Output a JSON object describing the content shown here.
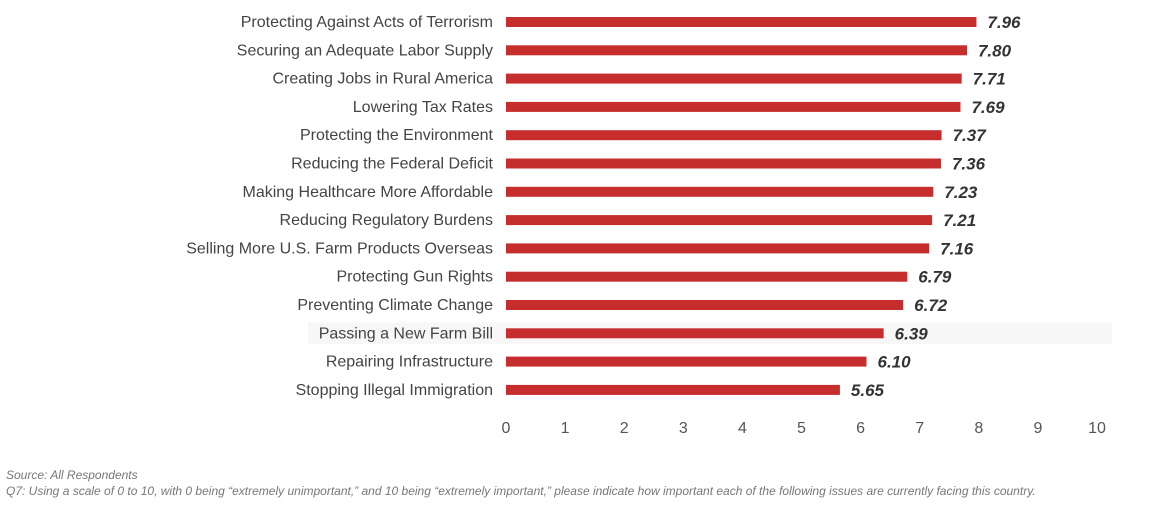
{
  "chart_data": {
    "type": "bar",
    "orientation": "horizontal",
    "categories": [
      "Protecting Against Acts of Terrorism",
      "Securing an Adequate Labor Supply",
      "Creating Jobs in Rural America",
      "Lowering Tax Rates",
      "Protecting the Environment",
      "Reducing the Federal Deficit",
      "Making Healthcare More Affordable",
      "Reducing Regulatory Burdens",
      "Selling More U.S. Farm Products Overseas",
      "Protecting Gun Rights ",
      "Preventing Climate Change",
      "Passing a New Farm Bill",
      "Repairing Infrastructure",
      "Stopping Illegal Immigration"
    ],
    "values": [
      7.96,
      7.8,
      7.71,
      7.69,
      7.37,
      7.36,
      7.23,
      7.21,
      7.16,
      6.79,
      6.72,
      6.39,
      6.1,
      5.65
    ],
    "value_labels": [
      "7.96",
      "7.80",
      "7.71",
      "7.69",
      "7.37",
      "7.36",
      "7.23",
      "7.21",
      "7.16",
      "6.79",
      "6.72",
      "6.39",
      "6.10",
      "5.65"
    ],
    "xlim": [
      0,
      10
    ],
    "xticks": [
      "0",
      "1",
      "2",
      "3",
      "4",
      "5",
      "6",
      "7",
      "8",
      "9",
      "10"
    ],
    "highlighted_category": "Passing a New Farm Bill",
    "grid": false,
    "bar_color": "#c62d2d",
    "highlight_color": "#f7f7f7"
  },
  "footnotes": {
    "source": "Source: All Respondents",
    "question": "Q7: Using a scale of 0 to 10, with 0 being “extremely unimportant,” and 10 being “extremely important,” please indicate how important each of the following issues are currently facing this country."
  }
}
